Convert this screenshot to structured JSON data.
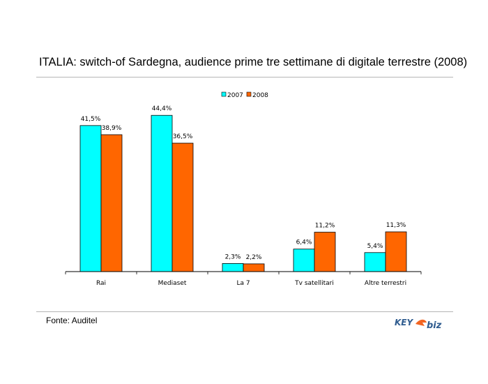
{
  "title": "ITALIA: switch-of Sardegna, audience prime tre settimane di digitale terrestre (2008)",
  "source": "Fonte: Auditel",
  "logo": {
    "part1": "KEY",
    "part2": "biz"
  },
  "colors": {
    "series_2007": "#00FFFF",
    "series_2008": "#FF6600",
    "axis": "#000000",
    "rule": "#B5B5B5",
    "logo_blue": "#2F5C8F",
    "logo_orange": "#F26522"
  },
  "chart_data": {
    "type": "bar",
    "categories": [
      "Rai",
      "Mediaset",
      "La 7",
      "Tv satellitari",
      "Altre terrestri"
    ],
    "series": [
      {
        "name": "2007",
        "values": [
          41.5,
          44.4,
          2.3,
          6.4,
          5.4
        ],
        "labels": [
          "41,5%",
          "44,4%",
          "2,3%",
          "6,4%",
          "5,4%"
        ]
      },
      {
        "name": "2008",
        "values": [
          38.9,
          36.5,
          2.2,
          11.2,
          11.3
        ],
        "labels": [
          "38,9%",
          "36,5%",
          "2,2%",
          "11,2%",
          "11,3%"
        ]
      }
    ],
    "ylim": [
      0,
      50
    ],
    "grid": false,
    "legend": "top-center"
  }
}
